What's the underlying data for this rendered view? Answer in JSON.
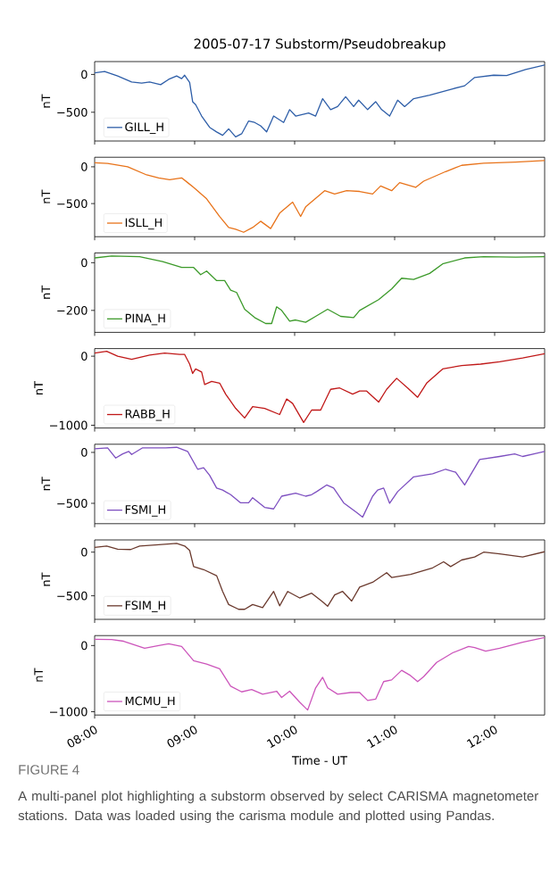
{
  "chart_data": [
    {
      "type": "line",
      "title": "2005-07-17  Substorm/Pseudobreakup",
      "ylabel": "nT",
      "legend": "bottom left",
      "tick_labels": "y",
      "xlim": [
        8,
        12.5
      ],
      "ylim": [
        -880,
        170
      ],
      "xticks": [
        {
          "value": 8,
          "label": null
        },
        {
          "value": 9,
          "label": null
        },
        {
          "value": 10,
          "label": null
        },
        {
          "value": 11,
          "label": null
        },
        {
          "value": 12,
          "label": null
        }
      ],
      "yticks": [
        {
          "value": -500,
          "label": "−500"
        },
        0
      ],
      "series": [
        {
          "name": "GILL_H",
          "color": "#2e5ea8",
          "x": [
            8.0,
            8.1,
            8.23,
            8.37,
            8.47,
            8.55,
            8.66,
            8.74,
            8.82,
            8.87,
            8.9,
            8.95,
            8.98,
            9.01,
            9.07,
            9.15,
            9.22,
            9.28,
            9.34,
            9.41,
            9.47,
            9.54,
            9.6,
            9.66,
            9.72,
            9.79,
            9.89,
            9.95,
            10.01,
            10.14,
            10.21,
            10.28,
            10.36,
            10.43,
            10.51,
            10.59,
            10.64,
            10.73,
            10.81,
            10.87,
            10.95,
            11.03,
            11.1,
            11.19,
            11.35,
            11.58,
            11.7,
            11.8,
            11.99,
            12.12,
            12.31,
            12.5
          ],
          "values": [
            20,
            40,
            -20,
            -100,
            -115,
            -100,
            -135,
            -65,
            -20,
            -55,
            -10,
            -105,
            -360,
            -400,
            -550,
            -700,
            -760,
            -805,
            -720,
            -825,
            -785,
            -615,
            -635,
            -680,
            -760,
            -550,
            -635,
            -465,
            -550,
            -510,
            -550,
            -320,
            -465,
            -425,
            -295,
            -425,
            -340,
            -465,
            -360,
            -465,
            -550,
            -340,
            -425,
            -320,
            -275,
            -190,
            -150,
            -40,
            -10,
            -15,
            65,
            125
          ]
        }
      ]
    },
    {
      "type": "line",
      "ylabel": "nT",
      "legend": "bottom left",
      "tick_labels": "y",
      "xlim": [
        8,
        12.5
      ],
      "ylim": [
        -950,
        130
      ],
      "xticks": [
        {
          "value": 8,
          "label": null
        },
        {
          "value": 9,
          "label": null
        },
        {
          "value": 10,
          "label": null
        },
        {
          "value": 11,
          "label": null
        },
        {
          "value": 12,
          "label": null
        }
      ],
      "yticks": [
        {
          "value": -500,
          "label": "−500"
        },
        0
      ],
      "series": [
        {
          "name": "ISLL_H",
          "color": "#e8731a",
          "x": [
            8.0,
            8.13,
            8.33,
            8.52,
            8.64,
            8.75,
            8.87,
            8.93,
            8.99,
            9.12,
            9.25,
            9.34,
            9.41,
            9.49,
            9.58,
            9.66,
            9.76,
            9.85,
            9.98,
            10.06,
            10.11,
            10.3,
            10.4,
            10.52,
            10.65,
            10.78,
            10.86,
            10.97,
            11.05,
            11.21,
            11.29,
            11.51,
            11.67,
            11.89,
            12.21,
            12.5
          ],
          "values": [
            55,
            45,
            0,
            -110,
            -150,
            -175,
            -150,
            -215,
            -280,
            -435,
            -675,
            -825,
            -850,
            -890,
            -825,
            -740,
            -840,
            -630,
            -480,
            -675,
            -545,
            -325,
            -370,
            -325,
            -335,
            -370,
            -260,
            -325,
            -215,
            -280,
            -195,
            -65,
            20,
            50,
            65,
            85
          ]
        }
      ]
    },
    {
      "type": "line",
      "ylabel": "nT",
      "legend": "bottom left",
      "tick_labels": "y",
      "xlim": [
        8,
        12.5
      ],
      "ylim": [
        -292,
        41
      ],
      "xticks": [
        {
          "value": 8,
          "label": null
        },
        {
          "value": 9,
          "label": null
        },
        {
          "value": 10,
          "label": null
        },
        {
          "value": 11,
          "label": null
        },
        {
          "value": 12,
          "label": null
        }
      ],
      "yticks": [
        {
          "value": -200,
          "label": "−200"
        },
        0
      ],
      "series": [
        {
          "name": "PINA_H",
          "color": "#3c9a2a",
          "x": [
            8.0,
            8.17,
            8.45,
            8.68,
            8.87,
            8.99,
            9.06,
            9.12,
            9.22,
            9.3,
            9.36,
            9.42,
            9.5,
            9.6,
            9.71,
            9.77,
            9.82,
            9.87,
            9.95,
            10.01,
            10.11,
            10.21,
            10.33,
            10.46,
            10.59,
            10.65,
            10.84,
            10.97,
            11.07,
            11.19,
            11.35,
            11.48,
            11.7,
            11.89,
            12.21,
            12.5
          ],
          "values": [
            20,
            28,
            25,
            5,
            -20,
            -20,
            -50,
            -35,
            -75,
            -75,
            -115,
            -125,
            -195,
            -230,
            -255,
            -255,
            -185,
            -200,
            -245,
            -240,
            -250,
            -225,
            -195,
            -225,
            -230,
            -200,
            -155,
            -110,
            -65,
            -70,
            -45,
            -5,
            20,
            25,
            23,
            25
          ]
        }
      ]
    },
    {
      "type": "line",
      "ylabel": "nT",
      "legend": "bottom left",
      "tick_labels": "y",
      "xlim": [
        8,
        12.5
      ],
      "ylim": [
        -1040,
        110
      ],
      "xticks": [
        {
          "value": 8,
          "label": null
        },
        {
          "value": 9,
          "label": null
        },
        {
          "value": 10,
          "label": null
        },
        {
          "value": 11,
          "label": null
        },
        {
          "value": 12,
          "label": null
        }
      ],
      "yticks": [
        {
          "value": -1000,
          "label": "−1000"
        },
        0
      ],
      "series": [
        {
          "name": "RABB_H",
          "color": "#c01818",
          "x": [
            8.0,
            8.12,
            8.23,
            8.37,
            8.55,
            8.7,
            8.85,
            8.9,
            8.95,
            8.98,
            9.01,
            9.07,
            9.1,
            9.17,
            9.25,
            9.31,
            9.41,
            9.5,
            9.58,
            9.7,
            9.85,
            9.92,
            9.98,
            10.09,
            10.17,
            10.26,
            10.36,
            10.45,
            10.58,
            10.65,
            10.72,
            10.84,
            10.92,
            11.02,
            11.13,
            11.23,
            11.32,
            11.48,
            11.67,
            11.86,
            12.05,
            12.28,
            12.5
          ],
          "values": [
            45,
            70,
            0,
            -45,
            15,
            45,
            25,
            25,
            -115,
            -250,
            -185,
            -230,
            -410,
            -365,
            -390,
            -550,
            -755,
            -895,
            -730,
            -755,
            -845,
            -620,
            -685,
            -960,
            -780,
            -780,
            -480,
            -460,
            -550,
            -505,
            -505,
            -665,
            -480,
            -320,
            -460,
            -595,
            -390,
            -185,
            -135,
            -115,
            -80,
            -25,
            35
          ]
        }
      ]
    },
    {
      "type": "line",
      "ylabel": "nT",
      "legend": "bottom left",
      "tick_labels": "y",
      "xlim": [
        8,
        12.5
      ],
      "ylim": [
        -700,
        80
      ],
      "xticks": [
        {
          "value": 8,
          "label": null
        },
        {
          "value": 9,
          "label": null
        },
        {
          "value": 10,
          "label": null
        },
        {
          "value": 11,
          "label": null
        },
        {
          "value": 12,
          "label": null
        }
      ],
      "yticks": [
        {
          "value": -500,
          "label": "−500"
        },
        0
      ],
      "series": [
        {
          "name": "FSMI_H",
          "color": "#7d4fc0",
          "x": [
            8.0,
            8.13,
            8.21,
            8.28,
            8.34,
            8.37,
            8.48,
            8.71,
            8.82,
            8.93,
            9.03,
            9.09,
            9.15,
            9.22,
            9.28,
            9.36,
            9.46,
            9.54,
            9.58,
            9.7,
            9.79,
            9.87,
            10.01,
            10.11,
            10.17,
            10.22,
            10.32,
            10.39,
            10.49,
            10.62,
            10.68,
            10.78,
            10.83,
            10.89,
            10.95,
            11.03,
            11.19,
            11.38,
            11.51,
            11.61,
            11.7,
            11.85,
            12.05,
            12.2,
            12.28,
            12.5
          ],
          "values": [
            35,
            45,
            -55,
            -15,
            10,
            -20,
            45,
            45,
            50,
            10,
            -165,
            -150,
            -225,
            -350,
            -370,
            -415,
            -495,
            -495,
            -445,
            -540,
            -555,
            -430,
            -400,
            -430,
            -415,
            -385,
            -320,
            -350,
            -495,
            -590,
            -635,
            -430,
            -370,
            -350,
            -500,
            -385,
            -240,
            -210,
            -165,
            -195,
            -320,
            -70,
            -40,
            -15,
            -40,
            10
          ]
        }
      ]
    },
    {
      "type": "line",
      "ylabel": "nT",
      "legend": "bottom left",
      "tick_labels": "y",
      "xlim": [
        8,
        12.5
      ],
      "ylim": [
        -770,
        140
      ],
      "xticks": [
        {
          "value": 8,
          "label": null
        },
        {
          "value": 9,
          "label": null
        },
        {
          "value": 10,
          "label": null
        },
        {
          "value": 11,
          "label": null
        },
        {
          "value": 12,
          "label": null
        }
      ],
      "yticks": [
        {
          "value": -500,
          "label": "−500"
        },
        0
      ],
      "series": [
        {
          "name": "FSIM_H",
          "color": "#6b3a2e",
          "x": [
            8.0,
            8.12,
            8.23,
            8.36,
            8.45,
            8.64,
            8.82,
            8.9,
            8.95,
            8.99,
            9.09,
            9.22,
            9.28,
            9.34,
            9.44,
            9.5,
            9.58,
            9.68,
            9.79,
            9.85,
            9.93,
            10.05,
            10.17,
            10.27,
            10.33,
            10.4,
            10.48,
            10.57,
            10.65,
            10.78,
            10.92,
            10.97,
            11.16,
            11.38,
            11.49,
            11.56,
            11.67,
            11.8,
            11.89,
            12.05,
            12.28,
            12.5
          ],
          "values": [
            55,
            70,
            35,
            30,
            70,
            85,
            100,
            70,
            20,
            -165,
            -200,
            -270,
            -450,
            -600,
            -655,
            -655,
            -600,
            -635,
            -450,
            -615,
            -450,
            -525,
            -470,
            -560,
            -620,
            -490,
            -450,
            -560,
            -400,
            -345,
            -235,
            -290,
            -255,
            -180,
            -110,
            -165,
            -90,
            -55,
            0,
            -20,
            -55,
            5
          ]
        }
      ]
    },
    {
      "type": "line",
      "xlabel": "Time - UT",
      "ylabel": "nT",
      "legend": "bottom left",
      "xlim": [
        8,
        12.5
      ],
      "ylim": [
        -1050,
        150
      ],
      "xticks": [
        {
          "value": 8,
          "label": "08:00"
        },
        {
          "value": 9,
          "label": "09:00"
        },
        {
          "value": 10,
          "label": "10:00"
        },
        {
          "value": 11,
          "label": "11:00"
        },
        {
          "value": 12,
          "label": "12:00"
        }
      ],
      "yticks": [
        {
          "value": -1000,
          "label": "−1000"
        },
        0
      ],
      "annotations": [
        "FIGURE 4",
        "A multi-panel plot highlighting a substorm observed by select CARISMA magnetometer stations. Data was loaded using the carisma module and plotted using Pandas."
      ],
      "series": [
        {
          "name": "MCMU_H",
          "color": "#cc55bb",
          "x": [
            8.0,
            8.17,
            8.29,
            8.5,
            8.64,
            8.74,
            8.87,
            8.99,
            9.12,
            9.25,
            9.36,
            9.47,
            9.57,
            9.68,
            9.82,
            9.87,
            9.95,
            10.05,
            10.13,
            10.21,
            10.28,
            10.33,
            10.43,
            10.56,
            10.65,
            10.73,
            10.81,
            10.89,
            10.97,
            11.07,
            11.15,
            11.23,
            11.29,
            11.42,
            11.58,
            11.74,
            11.8,
            11.91,
            12.05,
            12.28,
            12.5
          ],
          "values": [
            95,
            90,
            65,
            -40,
            0,
            25,
            -15,
            -230,
            -280,
            -350,
            -615,
            -700,
            -665,
            -735,
            -690,
            -785,
            -690,
            -855,
            -975,
            -640,
            -480,
            -640,
            -735,
            -710,
            -710,
            -830,
            -810,
            -545,
            -520,
            -375,
            -445,
            -545,
            -470,
            -255,
            -110,
            -15,
            -30,
            -85,
            -40,
            50,
            120
          ]
        }
      ]
    }
  ]
}
